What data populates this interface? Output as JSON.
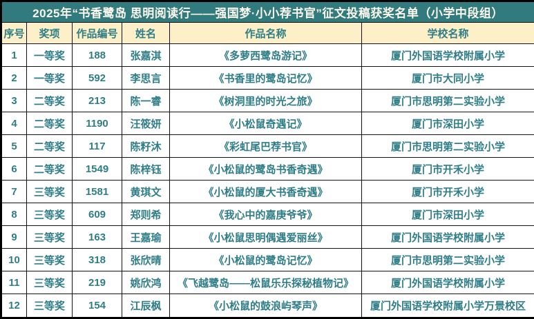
{
  "title": "2025年“书香鹭岛 思明阅读行——强国梦·小小荐书官”征文投稿获奖名单（小学中段组）",
  "columns": {
    "no": "序号",
    "award": "奖项",
    "code": "作品编号",
    "name": "姓名",
    "work": "作品名称",
    "school": "学校名称"
  },
  "colors": {
    "title_bar_bg": "#317a7d",
    "title_text": "#fcf8ec",
    "header_bg": "#fdf0c8",
    "cell_text": "#2f7d86",
    "grid_line": "#111111"
  },
  "rows": [
    {
      "no": "1",
      "award": "一等奖",
      "code": "188",
      "name": "张嘉淇",
      "work": "《多萝西鹭岛游记》",
      "school": "厦门外国语学校附属小学"
    },
    {
      "no": "2",
      "award": "一等奖",
      "code": "592",
      "name": "李思言",
      "work": "《书香里的鹭岛记忆》",
      "school": "厦门市大同小学"
    },
    {
      "no": "3",
      "award": "二等奖",
      "code": "213",
      "name": "陈一睿",
      "work": "《树洞里的时光之旅》",
      "school": "厦门市思明第二实验小学"
    },
    {
      "no": "4",
      "award": "二等奖",
      "code": "1190",
      "name": "汪筱妍",
      "work": "《小松鼠奇遇记》",
      "school": "厦门市深田小学"
    },
    {
      "no": "5",
      "award": "二等奖",
      "code": "117",
      "name": "陈籽沐",
      "work": "《彩虹尾巴荐书官》",
      "school": "厦门市思明第二实验小学"
    },
    {
      "no": "6",
      "award": "二等奖",
      "code": "1549",
      "name": "陈梓钰",
      "work": "《小松鼠的鹭岛书香奇遇》",
      "school": "厦门市开禾小学"
    },
    {
      "no": "7",
      "award": "三等奖",
      "code": "1581",
      "name": "黄琪文",
      "work": "《小松鼠的厦大书香奇遇》",
      "school": "厦门市开禾小学"
    },
    {
      "no": "8",
      "award": "三等奖",
      "code": "609",
      "name": "郑则希",
      "work": "《我心中的嘉庚爷爷》",
      "school": "厦门市深田小学"
    },
    {
      "no": "9",
      "award": "三等奖",
      "code": "163",
      "name": "王嘉瑜",
      "work": "《小松鼠思明偶遇爱丽丝》",
      "school": "厦门外国语学校附属小学"
    },
    {
      "no": "10",
      "award": "三等奖",
      "code": "318",
      "name": "张欣晴",
      "work": "《小松鼠的鹭岛记忆》",
      "school": "厦门市思明第二实验小学"
    },
    {
      "no": "11",
      "award": "三等奖",
      "code": "219",
      "name": "姚欣鸿",
      "work": "《飞越鹭岛——松鼠乐乐探秘植物记》",
      "school": "厦门外国语学校附属小学"
    },
    {
      "no": "12",
      "award": "三等奖",
      "code": "154",
      "name": "江辰枫",
      "work": "《小松鼠的鼓浪屿琴声》",
      "school": "厦门外国语学校附属小学万景校区"
    }
  ]
}
